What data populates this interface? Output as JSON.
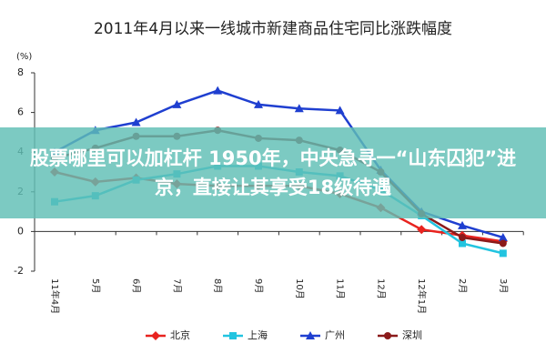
{
  "chart_data": {
    "type": "line",
    "title": "2011年4月以来一线城市新建商品住宅同比涨跌幅度",
    "y_label": "(%)",
    "categories": [
      "11年4月",
      "5月",
      "6月",
      "7月",
      "8月",
      "9月",
      "10月",
      "11月",
      "12月",
      "12年1月",
      "2月",
      "3月"
    ],
    "series": [
      {
        "name": "北京",
        "color": "#e8231f",
        "marker": "diamond",
        "values": [
          3.0,
          2.5,
          2.7,
          2.4,
          2.3,
          2.3,
          2.3,
          1.9,
          1.2,
          0.1,
          -0.2,
          -0.5
        ]
      },
      {
        "name": "上海",
        "color": "#22c4e0",
        "marker": "square",
        "values": [
          1.5,
          1.8,
          2.6,
          2.9,
          3.3,
          3.3,
          3.0,
          2.8,
          2.1,
          0.8,
          -0.6,
          -1.1
        ]
      },
      {
        "name": "广州",
        "color": "#1f3fd0",
        "marker": "triangle",
        "values": [
          4.0,
          5.1,
          5.5,
          6.4,
          7.1,
          6.4,
          6.2,
          6.1,
          3.1,
          1.0,
          0.3,
          -0.3
        ]
      },
      {
        "name": "深圳",
        "color": "#8b1a1a",
        "marker": "circle",
        "values": [
          3.7,
          4.2,
          4.8,
          4.8,
          5.1,
          4.7,
          4.6,
          4.1,
          3.0,
          0.9,
          -0.3,
          -0.6
        ]
      }
    ],
    "ylim": [
      -2,
      8
    ],
    "yticks": [
      -2,
      0,
      2,
      4,
      6,
      8
    ],
    "grid": false,
    "legend": "bottom"
  },
  "overlay": {
    "text": "股票哪里可以加杠杆 1950年，中央急寻一“山东囚犯”进京，直接让其享受18级待遇"
  }
}
